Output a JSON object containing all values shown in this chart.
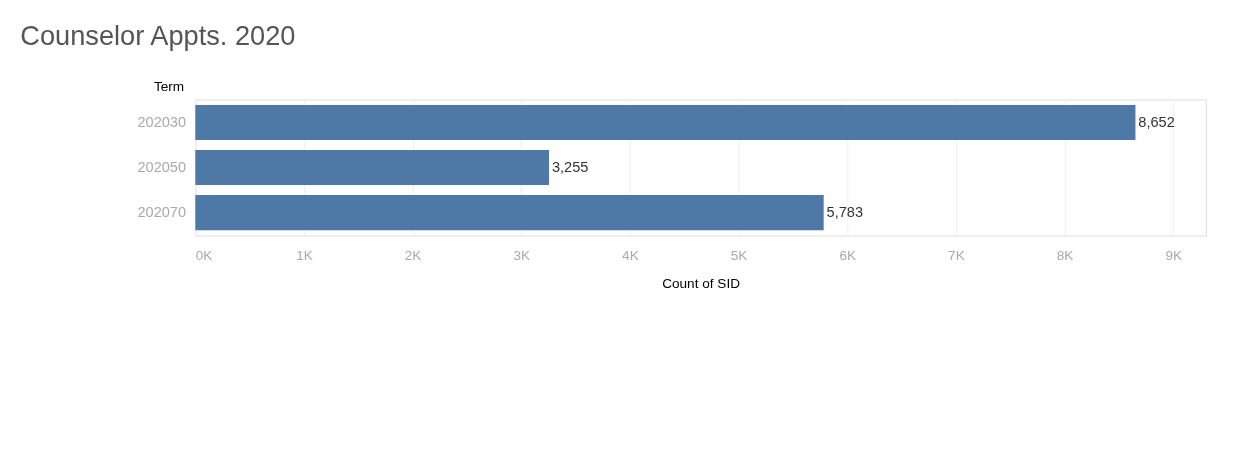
{
  "chart_data": {
    "type": "bar",
    "orientation": "horizontal",
    "title": "Counselor Appts. 2020",
    "ylabel": "Term",
    "xlabel": "Count of SID",
    "categories": [
      "202030",
      "202050",
      "202070"
    ],
    "values": [
      8652,
      3255,
      5783
    ],
    "color": "#4e79a7",
    "value_labels": [
      "8,652",
      "3,255",
      "5,783"
    ],
    "xlim": [
      0,
      9300
    ],
    "xticks": [
      {
        "value": 0,
        "label": "0K"
      },
      {
        "value": 1000,
        "label": "1K"
      },
      {
        "value": 2000,
        "label": "2K"
      },
      {
        "value": 3000,
        "label": "3K"
      },
      {
        "value": 4000,
        "label": "4K"
      },
      {
        "value": 5000,
        "label": "5K"
      },
      {
        "value": 6000,
        "label": "6K"
      },
      {
        "value": 7000,
        "label": "7K"
      },
      {
        "value": 8000,
        "label": "8K"
      },
      {
        "value": 9000,
        "label": "9K"
      }
    ],
    "grid": "x"
  }
}
